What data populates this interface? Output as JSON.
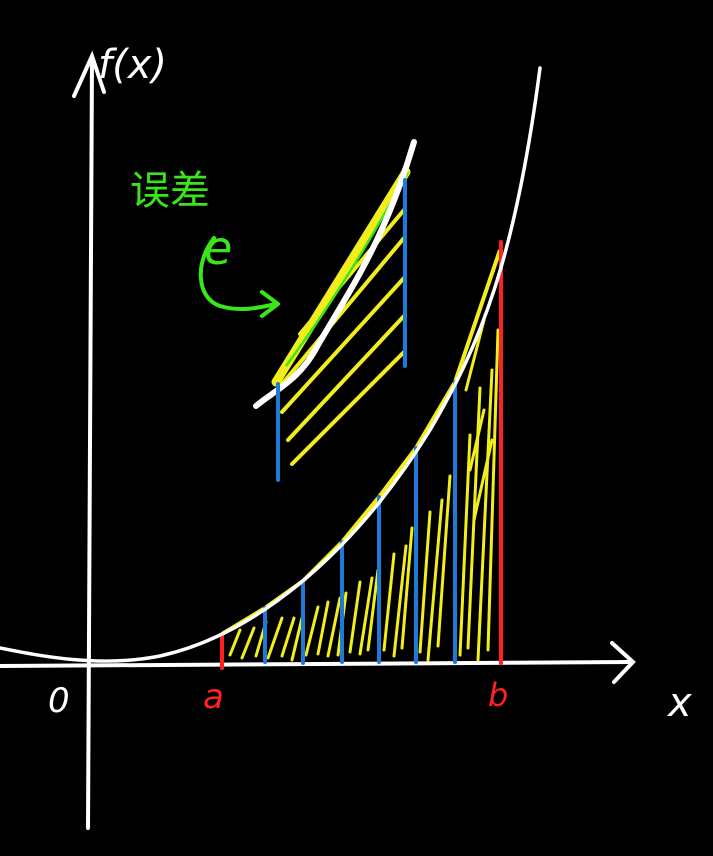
{
  "labels": {
    "y_axis": "f(x)",
    "x_axis": "x",
    "origin": "0",
    "a": "a",
    "b": "b",
    "error_note": "误差",
    "error_symbol": "e"
  },
  "colors": {
    "background": "#000000",
    "axis": "#ffffff",
    "curve": "#ffffff",
    "trapezoid_fill": "#f2ee1c",
    "divider_lines": "#1e7ad8",
    "bounds": "#ff2222",
    "annotation": "#39e61a"
  },
  "icons": {
    "x_arrow": "arrow-right-icon",
    "y_arrow": "arrow-up-icon",
    "pointer": "curved-arrow-icon"
  }
}
